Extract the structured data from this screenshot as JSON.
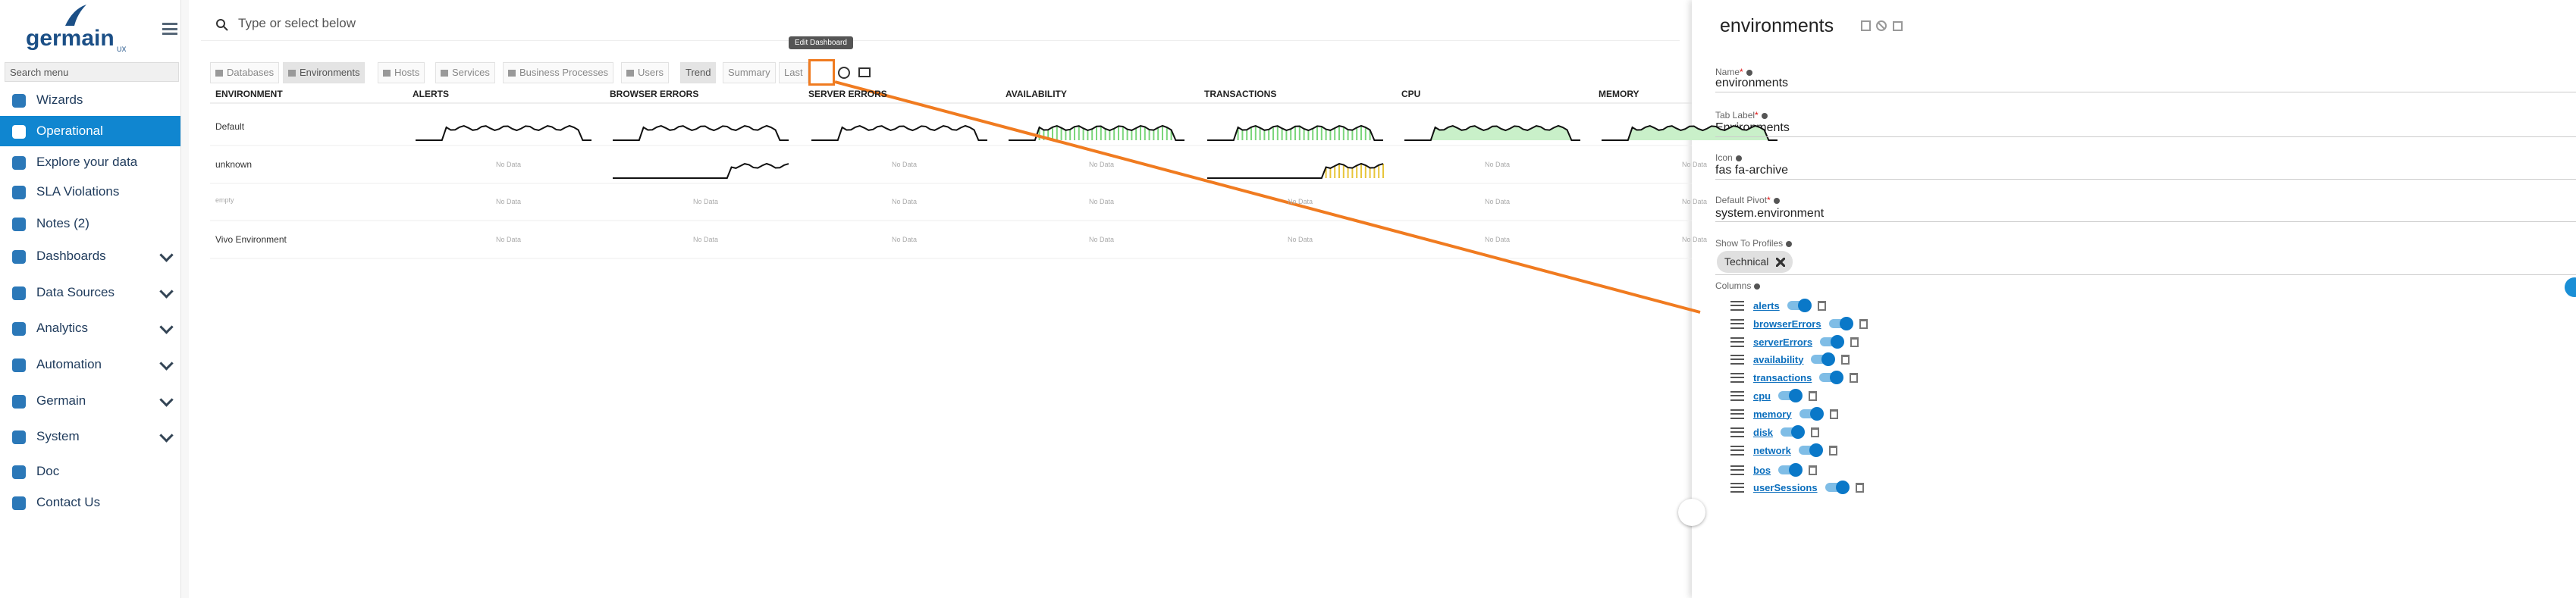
{
  "sidebar": {
    "logo": "germain",
    "logo_sub": "UX",
    "search_placeholder": "Search menu",
    "items": [
      {
        "label": "Wizards"
      },
      {
        "label": "Operational",
        "active": true
      },
      {
        "label": "Explore your data"
      },
      {
        "label": "SLA Violations"
      },
      {
        "label": "Notes (2)"
      },
      {
        "label": "Dashboards",
        "expandable": true
      },
      {
        "label": "Data Sources",
        "expandable": true
      },
      {
        "label": "Analytics",
        "expandable": true
      },
      {
        "label": "Automation",
        "expandable": true
      },
      {
        "label": "Germain",
        "expandable": true
      },
      {
        "label": "System",
        "expandable": true
      },
      {
        "label": "Doc"
      },
      {
        "label": "Contact Us"
      }
    ]
  },
  "search": {
    "placeholder": "Type or select below"
  },
  "tabs": [
    {
      "label": "Databases"
    },
    {
      "label": "Environments",
      "active": true
    },
    {
      "label": "Hosts"
    },
    {
      "label": "Services"
    },
    {
      "label": "Business Processes"
    },
    {
      "label": "Users"
    },
    {
      "label": "Trend",
      "active": true
    },
    {
      "label": "Summary"
    },
    {
      "label": "Last"
    }
  ],
  "tooltip": "Edit Dashboard",
  "table": {
    "columns": [
      "ENVIRONMENT",
      "ALERTS",
      "BROWSER ERRORS",
      "SERVER ERRORS",
      "AVAILABILITY",
      "TRANSACTIONS",
      "CPU",
      "MEMORY"
    ],
    "rows": [
      {
        "name": "Default",
        "cells": [
          null,
          null,
          null,
          null,
          null,
          null,
          null
        ]
      },
      {
        "name": "unknown",
        "cells": [
          "No Data",
          null,
          "No Data",
          "No Data",
          null,
          "No Data",
          "No Data"
        ]
      },
      {
        "name": "empty",
        "cells": [
          "No Data",
          "No Data",
          "No Data",
          "No Data",
          "No Data",
          "No Data",
          "No Data"
        ]
      },
      {
        "name": "Vivo Environment",
        "cells": [
          "No Data",
          "No Data",
          "No Data",
          "No Data",
          "No Data",
          "No Data",
          "No Data"
        ]
      }
    ]
  },
  "panel": {
    "title": "environments",
    "required_mark": "*",
    "fields": [
      {
        "label": "Name",
        "required": true,
        "value": "environments"
      },
      {
        "label": "Tab Label",
        "required": true,
        "value": "Environments"
      },
      {
        "label": "Icon",
        "value": "fas fa-archive"
      },
      {
        "label": "Default Pivot",
        "required": true,
        "value": "system.environment"
      }
    ],
    "profiles": {
      "label": "Show To Profiles",
      "chips": [
        "Technical"
      ]
    },
    "columns_label": "Columns",
    "columns": [
      "alerts",
      "browserErrors",
      "serverErrors",
      "availability",
      "transactions",
      "cpu",
      "memory",
      "disk",
      "network",
      "bos",
      "userSessions"
    ]
  }
}
